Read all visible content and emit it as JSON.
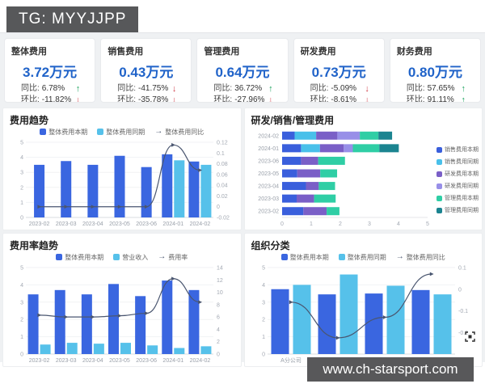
{
  "overlay": {
    "tag": "TG: MYYJJPP",
    "watermark": "www.ch-starsport.com"
  },
  "colors": {
    "value_blue": "#2063c9",
    "bar_primary": "#3a66e0",
    "bar_secondary": "#56c1ea",
    "bar_purple": "#7a5fc7",
    "bar_light_purple": "#988fe8",
    "bar_green": "#2fcea5",
    "bar_dark_teal": "#1b8490",
    "line_dark": "#4a5670",
    "up_green": "#1ea35f",
    "down_red": "#d0414b"
  },
  "kpis": [
    {
      "title": "整体费用",
      "value": "3.72万元",
      "yoy_label": "同比:",
      "yoy_value": "6.78%",
      "yoy_dir": "up",
      "mom_label": "环比:",
      "mom_value": "-11.82%",
      "mom_dir": "down"
    },
    {
      "title": "销售费用",
      "value": "0.43万元",
      "yoy_label": "同比:",
      "yoy_value": "-41.75%",
      "yoy_dir": "down",
      "mom_label": "环比:",
      "mom_value": "-35.78%",
      "mom_dir": "down"
    },
    {
      "title": "管理费用",
      "value": "0.64万元",
      "yoy_label": "同比:",
      "yoy_value": "36.72%",
      "yoy_dir": "up",
      "mom_label": "环比:",
      "mom_value": "-27.96%",
      "mom_dir": "down"
    },
    {
      "title": "研发费用",
      "value": "0.73万元",
      "yoy_label": "同比:",
      "yoy_value": "-5.09%",
      "yoy_dir": "down",
      "mom_label": "环比:",
      "mom_value": "-8.61%",
      "mom_dir": "down"
    },
    {
      "title": "财务费用",
      "value": "0.80万元",
      "yoy_label": "同比:",
      "yoy_value": "57.65%",
      "yoy_dir": "up",
      "mom_label": "环比:",
      "mom_value": "91.11%",
      "mom_dir": "up"
    }
  ],
  "chart_data": [
    {
      "type": "bar",
      "title": "费用趋势",
      "legend_position": "top",
      "categories": [
        "2023-02",
        "2023-03",
        "2023-04",
        "2023-05",
        "2023-06",
        "2024-01",
        "2024-02"
      ],
      "series": [
        {
          "name": "整体费用本期",
          "kind": "bar",
          "color": "#3a66e0",
          "values": [
            3.5,
            3.75,
            3.5,
            4.1,
            3.35,
            4.2,
            3.72
          ]
        },
        {
          "name": "整体费用同期",
          "kind": "bar",
          "color": "#56c1ea",
          "values": [
            null,
            null,
            null,
            null,
            null,
            3.8,
            3.5
          ]
        },
        {
          "name": "整体费用同比",
          "kind": "line",
          "axis": "right",
          "color": "#4a5670",
          "values": [
            0,
            0,
            0,
            0,
            0,
            0.115,
            0.068
          ]
        }
      ],
      "left_axis": {
        "min": 0,
        "max": 5,
        "ticks": [
          0,
          1,
          2,
          3,
          4,
          5
        ]
      },
      "right_axis": {
        "min": -0.02,
        "max": 0.12,
        "ticks": [
          -0.02,
          0,
          0.02,
          0.04,
          0.06,
          0.08,
          0.1,
          0.12
        ]
      }
    },
    {
      "type": "stacked-bar-horizontal",
      "title": "研发/销售/管理费用",
      "legend_position": "right",
      "categories": [
        "2024-02",
        "2024-01",
        "2023-06",
        "2023-05",
        "2023-04",
        "2023-03",
        "2023-02"
      ],
      "series": [
        {
          "name": "销售费用本期",
          "color": "#3a5fdc",
          "values": [
            0.43,
            0.65,
            0.65,
            0.52,
            0.82,
            0.5,
            0.73
          ]
        },
        {
          "name": "销售费用同期",
          "color": "#49c0ea",
          "values": [
            0.74,
            0.65,
            0,
            0,
            0,
            0,
            0
          ]
        },
        {
          "name": "研发费用本期",
          "color": "#7a5fc7",
          "values": [
            0.73,
            0.82,
            0.59,
            0.79,
            0.44,
            0.6,
            0.8
          ]
        },
        {
          "name": "研发费用同期",
          "color": "#988fe8",
          "values": [
            0.77,
            0.31,
            0,
            0,
            0,
            0,
            0
          ]
        },
        {
          "name": "管理费用本期",
          "color": "#2fcea5",
          "values": [
            0.64,
            0.91,
            0.92,
            0.58,
            0.56,
            0.74,
            0.44
          ]
        },
        {
          "name": "管理费用同期",
          "color": "#1b8490",
          "values": [
            0.47,
            0.67,
            0,
            0,
            0,
            0,
            0
          ]
        }
      ],
      "x_axis": {
        "min": 0,
        "max": 5,
        "ticks": [
          0,
          1,
          2,
          3,
          4,
          5
        ]
      }
    },
    {
      "type": "bar",
      "title": "费用率趋势",
      "legend_position": "top",
      "categories": [
        "2023-02",
        "2023-03",
        "2023-04",
        "2023-05",
        "2023-06",
        "2024-01",
        "2024-02"
      ],
      "series": [
        {
          "name": "整体费用本期",
          "kind": "bar",
          "color": "#3a66e0",
          "values": [
            3.45,
            3.7,
            3.45,
            4.05,
            3.35,
            4.25,
            3.7
          ]
        },
        {
          "name": "营业收入",
          "kind": "bar",
          "color": "#56c1ea",
          "values": [
            0.55,
            0.65,
            0.6,
            0.65,
            0.5,
            0.35,
            0.45
          ]
        },
        {
          "name": "费用率",
          "kind": "line",
          "axis": "right",
          "color": "#4a5670",
          "values": [
            6.3,
            6.0,
            6.0,
            6.2,
            6.6,
            12.2,
            8.4
          ]
        }
      ],
      "left_axis": {
        "min": 0,
        "max": 5,
        "ticks": [
          0,
          1,
          2,
          3,
          4,
          5
        ]
      },
      "right_axis": {
        "min": 0,
        "max": 14,
        "ticks": [
          0,
          2,
          4,
          6,
          8,
          10,
          12,
          14
        ]
      }
    },
    {
      "type": "bar",
      "title": "组织分类",
      "legend_position": "top",
      "categories": [
        "A分公司",
        "B分公司",
        "C分公司",
        "XXX集团"
      ],
      "series": [
        {
          "name": "整体费用本期",
          "kind": "bar",
          "color": "#3a66e0",
          "values": [
            3.75,
            3.45,
            3.5,
            3.7
          ]
        },
        {
          "name": "整体费用同期",
          "kind": "bar",
          "color": "#56c1ea",
          "values": [
            4.0,
            4.6,
            3.95,
            3.45
          ]
        },
        {
          "name": "整体费用同比",
          "kind": "line",
          "axis": "right",
          "color": "#4a5670",
          "values": [
            -0.06,
            -0.225,
            -0.13,
            0.07
          ]
        }
      ],
      "left_axis": {
        "min": 0,
        "max": 5,
        "ticks": [
          0,
          1,
          2,
          3,
          4,
          5
        ]
      },
      "right_axis": {
        "min": -0.3,
        "max": 0.1,
        "ticks": [
          -0.2,
          -0.1,
          0,
          0.1
        ]
      }
    }
  ]
}
